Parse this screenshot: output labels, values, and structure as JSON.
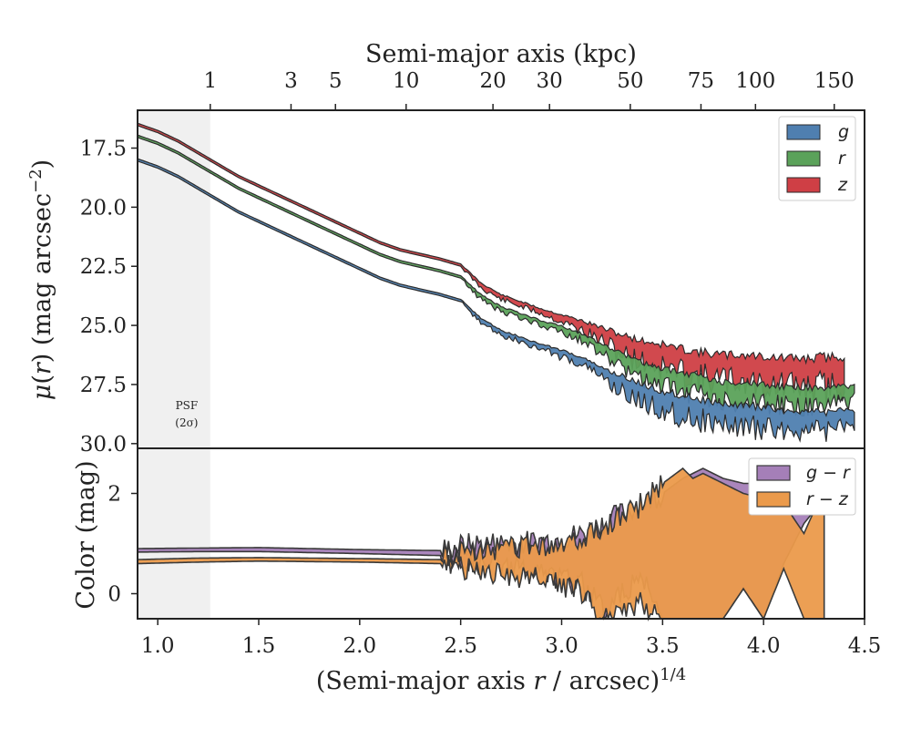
{
  "chart_data": [
    {
      "type": "area",
      "panel": "surface-brightness",
      "xlabel_top": "Semi-major axis (kpc)",
      "ylabel": "μ(r) (mag arcsec⁻²)",
      "x_axis_label": "(Semi-major axis r / arcsec)^1/4",
      "xlim": [
        0.9,
        4.5
      ],
      "ylim": [
        30.2,
        15.9
      ],
      "y_inverted": true,
      "y_ticks": [
        "17.5",
        "20.0",
        "22.5",
        "25.0",
        "27.5",
        "30.0"
      ],
      "top_ticks": [
        {
          "label": "1",
          "kpc": 1
        },
        {
          "label": "3",
          "kpc": 3
        },
        {
          "label": "5",
          "kpc": 5
        },
        {
          "label": "10",
          "kpc": 10
        },
        {
          "label": "20",
          "kpc": 20
        },
        {
          "label": "30",
          "kpc": 30
        },
        {
          "label": "50",
          "kpc": 50
        },
        {
          "label": "75",
          "kpc": 75
        },
        {
          "label": "100",
          "kpc": 100
        },
        {
          "label": "150",
          "kpc": 150
        }
      ],
      "shade": {
        "x_from": 0.9,
        "x_to": 1.26,
        "label_line1": "PSF",
        "label_line2": "(2σ)"
      },
      "legend_position": "top-right",
      "series": [
        {
          "name": "g",
          "color": "#4f7fb0",
          "x": [
            0.9,
            1.0,
            1.1,
            1.2,
            1.3,
            1.4,
            1.5,
            1.6,
            1.7,
            1.8,
            1.9,
            2.0,
            2.1,
            2.2,
            2.3,
            2.4,
            2.5,
            2.6,
            2.7,
            2.8,
            2.9,
            3.0,
            3.1,
            3.2,
            3.3,
            3.4,
            3.5,
            3.6,
            3.7,
            3.8,
            3.9,
            4.0,
            4.1,
            4.2,
            4.3,
            4.4,
            4.45
          ],
          "y": [
            18.0,
            18.3,
            18.7,
            19.2,
            19.7,
            20.2,
            20.6,
            21.0,
            21.4,
            21.8,
            22.2,
            22.6,
            23.0,
            23.3,
            23.5,
            23.7,
            23.95,
            24.8,
            25.3,
            25.6,
            25.9,
            26.2,
            26.5,
            27.0,
            27.5,
            27.9,
            28.2,
            28.4,
            28.6,
            28.8,
            28.8,
            28.9,
            29.0,
            29.0,
            29.1,
            28.9,
            28.9
          ],
          "band": [
            0.1,
            0.1,
            0.1,
            0.1,
            0.1,
            0.1,
            0.1,
            0.1,
            0.1,
            0.1,
            0.1,
            0.1,
            0.1,
            0.1,
            0.1,
            0.1,
            0.1,
            0.2,
            0.2,
            0.2,
            0.2,
            0.3,
            0.3,
            0.4,
            0.7,
            0.8,
            0.8,
            0.9,
            0.9,
            0.9,
            0.9,
            0.9,
            0.8,
            0.8,
            0.8,
            0.7,
            0.6
          ]
        },
        {
          "name": "r",
          "color": "#5ba25a",
          "x": [
            0.9,
            1.0,
            1.1,
            1.2,
            1.3,
            1.4,
            1.5,
            1.6,
            1.7,
            1.8,
            1.9,
            2.0,
            2.1,
            2.2,
            2.3,
            2.4,
            2.5,
            2.6,
            2.7,
            2.8,
            2.9,
            3.0,
            3.1,
            3.2,
            3.3,
            3.4,
            3.5,
            3.6,
            3.7,
            3.8,
            3.9,
            4.0,
            4.1,
            4.2,
            4.3,
            4.4,
            4.45
          ],
          "y": [
            17.0,
            17.3,
            17.7,
            18.2,
            18.7,
            19.2,
            19.6,
            20.0,
            20.4,
            20.8,
            21.2,
            21.6,
            22.0,
            22.3,
            22.5,
            22.7,
            22.95,
            23.8,
            24.3,
            24.6,
            24.9,
            25.2,
            25.5,
            26.0,
            26.5,
            26.9,
            27.2,
            27.4,
            27.6,
            27.8,
            27.8,
            27.9,
            28.0,
            28.0,
            28.1,
            27.9,
            27.9
          ],
          "band": [
            0.1,
            0.1,
            0.1,
            0.1,
            0.1,
            0.1,
            0.1,
            0.1,
            0.1,
            0.1,
            0.1,
            0.1,
            0.1,
            0.1,
            0.1,
            0.1,
            0.1,
            0.2,
            0.2,
            0.2,
            0.2,
            0.3,
            0.3,
            0.4,
            0.6,
            0.7,
            0.7,
            0.8,
            0.8,
            0.8,
            0.8,
            0.8,
            0.8,
            0.8,
            0.8,
            0.7,
            0.6
          ]
        },
        {
          "name": "z",
          "color": "#cf3f45",
          "x": [
            0.9,
            1.0,
            1.1,
            1.2,
            1.3,
            1.4,
            1.5,
            1.6,
            1.7,
            1.8,
            1.9,
            2.0,
            2.1,
            2.2,
            2.3,
            2.4,
            2.5,
            2.6,
            2.7,
            2.8,
            2.9,
            3.0,
            3.1,
            3.2,
            3.3,
            3.4,
            3.5,
            3.6,
            3.7,
            3.8,
            3.9,
            4.0,
            4.1,
            4.2,
            4.3,
            4.4
          ],
          "y": [
            16.5,
            16.8,
            17.2,
            17.7,
            18.2,
            18.7,
            19.1,
            19.5,
            19.9,
            20.3,
            20.7,
            21.1,
            21.5,
            21.8,
            22.0,
            22.2,
            22.45,
            23.3,
            23.8,
            24.1,
            24.4,
            24.7,
            25.0,
            25.4,
            25.8,
            26.1,
            26.3,
            26.5,
            26.7,
            26.8,
            26.8,
            26.9,
            27.0,
            27.0,
            27.0,
            26.9
          ],
          "band": [
            0.1,
            0.1,
            0.1,
            0.1,
            0.1,
            0.1,
            0.1,
            0.1,
            0.1,
            0.1,
            0.1,
            0.1,
            0.1,
            0.1,
            0.1,
            0.1,
            0.1,
            0.2,
            0.2,
            0.2,
            0.2,
            0.3,
            0.4,
            0.6,
            0.8,
            0.9,
            1.0,
            1.0,
            1.1,
            1.1,
            1.1,
            1.2,
            1.2,
            1.2,
            1.3,
            1.2
          ]
        }
      ],
      "legend_entries": [
        "g",
        "r",
        "z"
      ]
    },
    {
      "type": "area",
      "panel": "color",
      "ylabel": "Color (mag)",
      "xlabel": "(Semi-major axis r / arcsec)^1/4",
      "x_ticks": [
        "1.0",
        "1.5",
        "2.0",
        "2.5",
        "3.0",
        "3.5",
        "4.0",
        "4.5"
      ],
      "x_tick_values": [
        1.0,
        1.5,
        2.0,
        2.5,
        3.0,
        3.5,
        4.0,
        4.5
      ],
      "y_ticks": [
        "0",
        "2"
      ],
      "y_tick_values": [
        0,
        2
      ],
      "xlim": [
        0.9,
        4.5
      ],
      "ylim": [
        -0.5,
        2.9
      ],
      "legend_position": "top-right",
      "series": [
        {
          "name": "g − r",
          "color": "#a57fb8",
          "x": [
            0.9,
            1.2,
            1.5,
            2.0,
            2.4,
            2.5,
            2.6,
            2.8,
            3.0,
            3.1,
            3.2,
            3.3,
            3.4,
            3.5,
            3.6,
            3.65,
            3.7,
            3.8,
            3.9,
            4.0,
            4.1,
            4.2,
            4.3
          ],
          "lower": [
            0.83,
            0.84,
            0.84,
            0.8,
            0.76,
            0.7,
            0.6,
            0.5,
            0.3,
            0.2,
            -0.3,
            0.0,
            0.3,
            -0.5,
            -0.5,
            -0.5,
            -0.5,
            -0.5,
            0.1,
            -0.5,
            0.6,
            1.4,
            1.9
          ],
          "upper": [
            0.9,
            0.91,
            0.92,
            0.88,
            0.86,
            0.95,
            1.0,
            1.0,
            1.1,
            1.2,
            1.4,
            1.6,
            1.8,
            2.0,
            2.3,
            2.4,
            2.5,
            2.3,
            2.2,
            2.2,
            2.1,
            1.9,
            1.9
          ]
        },
        {
          "name": "r − z",
          "color": "#eb9a4b",
          "x": [
            0.9,
            1.2,
            1.5,
            2.0,
            2.4,
            2.5,
            2.6,
            2.8,
            3.0,
            3.1,
            3.2,
            3.3,
            3.4,
            3.5,
            3.6,
            3.65,
            3.7,
            3.8,
            3.9,
            4.0,
            4.1,
            4.2,
            4.3
          ],
          "lower": [
            0.6,
            0.63,
            0.65,
            0.63,
            0.6,
            0.5,
            0.4,
            0.35,
            0.2,
            0.0,
            -0.5,
            -0.3,
            -0.2,
            -0.5,
            -0.5,
            -0.5,
            -0.5,
            -0.5,
            0.1,
            -0.5,
            0.5,
            -0.5,
            -0.5
          ],
          "upper": [
            0.68,
            0.71,
            0.72,
            0.7,
            0.68,
            0.8,
            0.9,
            0.95,
            1.0,
            1.1,
            1.3,
            1.5,
            1.8,
            2.2,
            2.5,
            2.3,
            2.4,
            2.2,
            2.0,
            1.9,
            1.8,
            1.2,
            2.1
          ]
        }
      ],
      "legend_entries": [
        "g − r",
        "r − z"
      ]
    }
  ]
}
